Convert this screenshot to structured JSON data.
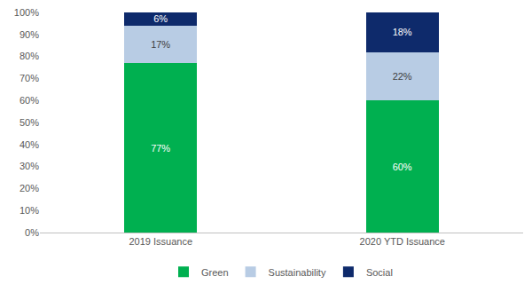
{
  "chart_data": {
    "type": "bar",
    "stacked": true,
    "data_labels": true,
    "grid": false,
    "legend": "bottom",
    "categories": [
      "2019 Issuance",
      "2020 YTD Issuance"
    ],
    "series": [
      {
        "name": "Green",
        "color": "#00b050",
        "values": [
          77,
          60
        ],
        "value_labels": [
          "77%",
          "60%"
        ]
      },
      {
        "name": "Sustainability",
        "color": "#b8cce4",
        "values": [
          17,
          22
        ],
        "value_labels": [
          "17%",
          "22%"
        ]
      },
      {
        "name": "Social",
        "color": "#0e2a6b",
        "values": [
          6,
          18
        ],
        "value_labels": [
          "6%",
          "18%"
        ]
      }
    ],
    "ylim": [
      0,
      100
    ],
    "yticks": [
      {
        "value": 0,
        "label": "0%"
      },
      {
        "value": 10,
        "label": "10%"
      },
      {
        "value": 20,
        "label": "20%"
      },
      {
        "value": 30,
        "label": "30%"
      },
      {
        "value": 40,
        "label": "40%"
      },
      {
        "value": 50,
        "label": "50%"
      },
      {
        "value": 60,
        "label": "60%"
      },
      {
        "value": 70,
        "label": "70%"
      },
      {
        "value": 80,
        "label": "80%"
      },
      {
        "value": 90,
        "label": "90%"
      },
      {
        "value": 100,
        "label": "100%"
      }
    ]
  }
}
